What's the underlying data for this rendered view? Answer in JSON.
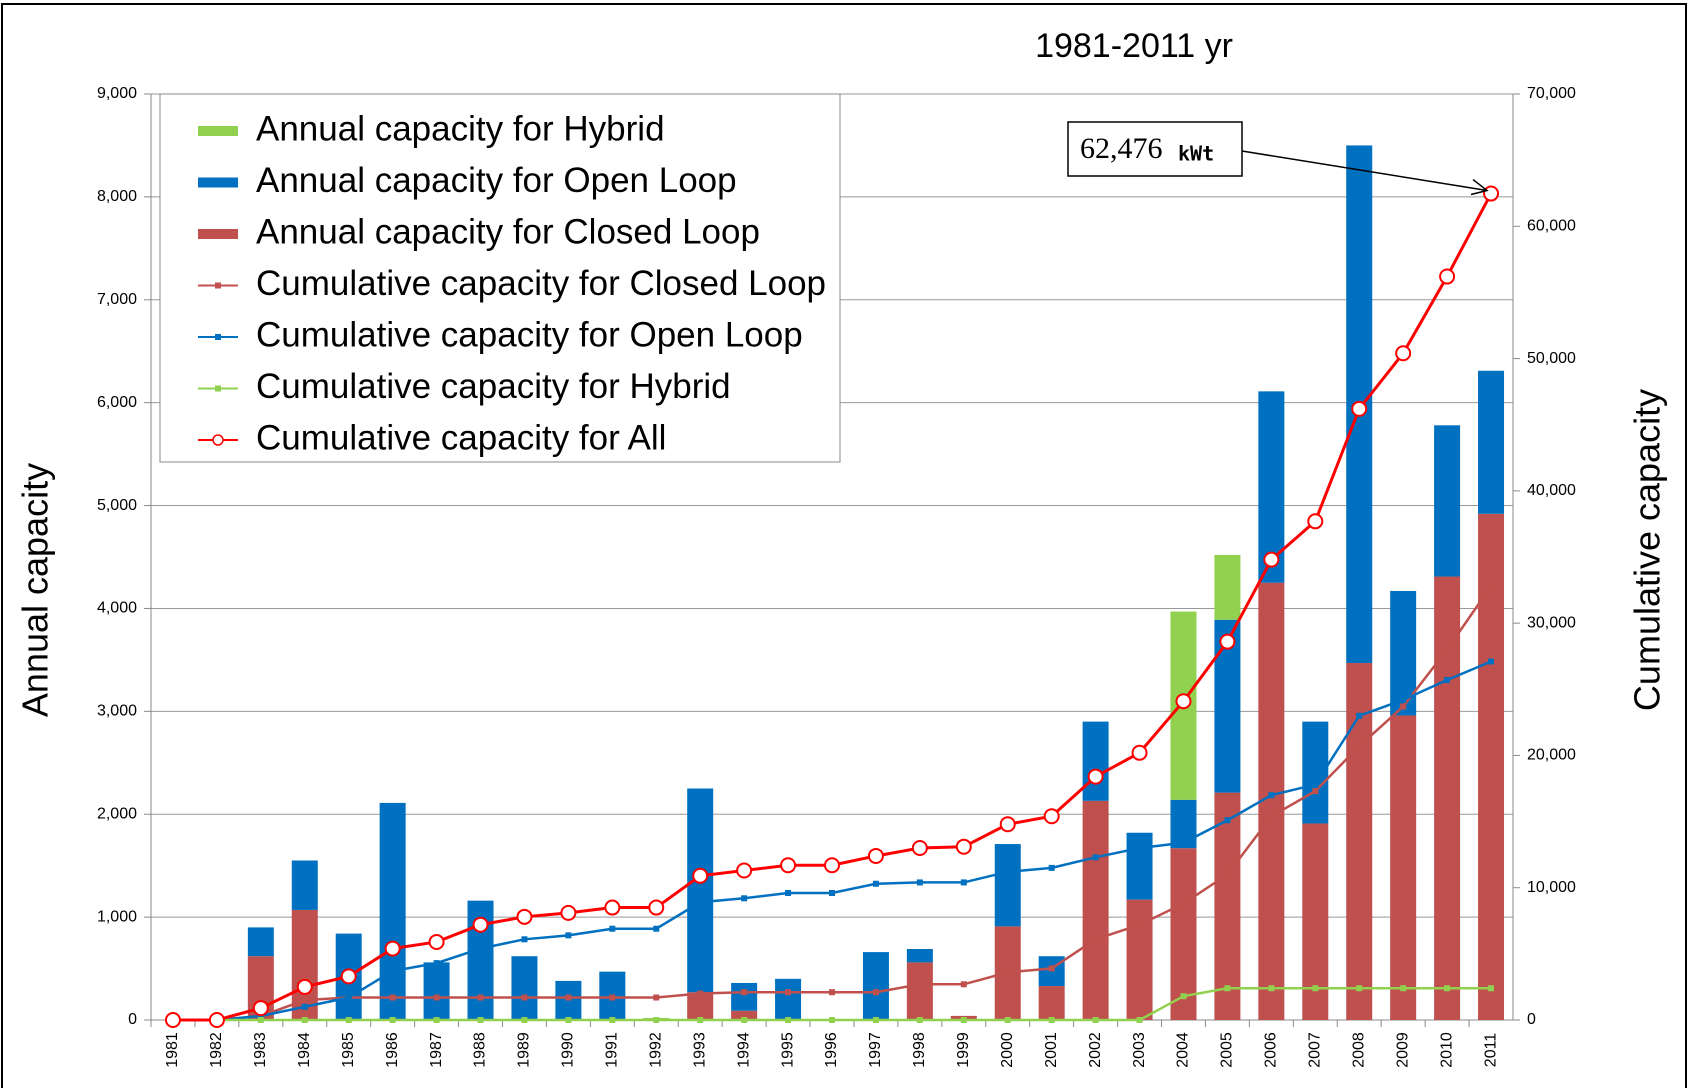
{
  "chart_data": {
    "type": "bar",
    "title": "1981-2011 yr",
    "ylabel": "Annual capacity",
    "y2label": "Cumulative capacity",
    "annotation": {
      "value": "62,476",
      "unit": "kWt"
    },
    "categories": [
      "1981",
      "1982",
      "1983",
      "1984",
      "1985",
      "1986",
      "1987",
      "1988",
      "1989",
      "1990",
      "1991",
      "1992",
      "1993",
      "1994",
      "1995",
      "1996",
      "1997",
      "1998",
      "1999",
      "2000",
      "2001",
      "2002",
      "2003",
      "2004",
      "2005",
      "2006",
      "2007",
      "2008",
      "2009",
      "2010",
      "2011"
    ],
    "ylim": [
      0,
      9000
    ],
    "yticks": [
      0,
      {
        "value": 1000,
        "label": "1,000"
      },
      {
        "value": 2000,
        "label": "2,000"
      },
      {
        "value": 3000,
        "label": "3,000"
      },
      {
        "value": 4000,
        "label": "4,000"
      },
      {
        "value": 5000,
        "label": "5,000"
      },
      {
        "value": 6000,
        "label": "6,000"
      },
      {
        "value": 7000,
        "label": "7,000"
      },
      {
        "value": 8000,
        "label": "8,000"
      },
      {
        "value": 9000,
        "label": "9,000"
      }
    ],
    "y2lim": [
      0,
      70000
    ],
    "y2ticks": [
      0,
      {
        "value": 10000,
        "label": "10,000"
      },
      {
        "value": 20000,
        "label": "20,000"
      },
      {
        "value": 30000,
        "label": "30,000"
      },
      {
        "value": 40000,
        "label": "40,000"
      },
      {
        "value": 50000,
        "label": "50,000"
      },
      {
        "value": 60000,
        "label": "60,000"
      },
      {
        "value": 70000,
        "label": "70,000"
      }
    ],
    "grid": true,
    "legend": "upper left",
    "series": [
      {
        "name": "Annual capacity for Hybrid",
        "type": "bar",
        "color": "#92d050",
        "values": [
          0,
          0,
          0,
          0,
          0,
          0,
          0,
          0,
          0,
          0,
          0,
          20,
          0,
          0,
          0,
          0,
          0,
          0,
          0,
          0,
          0,
          0,
          0,
          1830,
          630,
          0,
          0,
          0,
          0,
          0,
          0
        ]
      },
      {
        "name": "Annual capacity for Open Loop",
        "type": "bar",
        "color": "#0070c0",
        "values": [
          0,
          0,
          280,
          480,
          840,
          2110,
          560,
          1160,
          620,
          380,
          470,
          0,
          1980,
          270,
          400,
          0,
          660,
          130,
          0,
          800,
          290,
          770,
          650,
          470,
          1680,
          1860,
          990,
          5030,
          1210,
          1470,
          1390
        ]
      },
      {
        "name": "Annual capacity for Closed Loop",
        "type": "bar",
        "color": "#c0504d",
        "values": [
          0,
          0,
          620,
          1070,
          0,
          0,
          0,
          0,
          0,
          0,
          0,
          0,
          270,
          90,
          0,
          0,
          0,
          560,
          40,
          910,
          330,
          2130,
          1170,
          1670,
          2210,
          4250,
          1910,
          3470,
          2960,
          4310,
          4920
        ]
      },
      {
        "name": "Cumulative capacity for Closed Loop",
        "type": "line",
        "axis": "y2",
        "marker": "square",
        "color": "#c0504d",
        "values": [
          0,
          0,
          300,
          1500,
          1700,
          1700,
          1700,
          1700,
          1700,
          1700,
          1700,
          1700,
          2000,
          2100,
          2100,
          2100,
          2100,
          2700,
          2700,
          3600,
          3900,
          6100,
          7200,
          8800,
          11000,
          15400,
          17300,
          20700,
          23700,
          28000,
          32800
        ]
      },
      {
        "name": "Cumulative capacity for Open Loop",
        "type": "line",
        "axis": "y2",
        "marker": "square",
        "color": "#0070c0",
        "values": [
          0,
          0,
          300,
          1000,
          1700,
          3700,
          4300,
          5400,
          6100,
          6400,
          6900,
          6900,
          8900,
          9200,
          9600,
          9600,
          10300,
          10400,
          10400,
          11200,
          11500,
          12300,
          13000,
          13400,
          15100,
          17000,
          17800,
          23000,
          24200,
          25700,
          27100
        ]
      },
      {
        "name": "Cumulative capacity for Hybrid",
        "type": "line",
        "axis": "y2",
        "marker": "square",
        "color": "#92d050",
        "values": [
          0,
          0,
          0,
          0,
          0,
          0,
          0,
          0,
          0,
          0,
          0,
          0,
          0,
          0,
          0,
          0,
          0,
          0,
          0,
          0,
          0,
          0,
          0,
          1800,
          2400,
          2400,
          2400,
          2400,
          2400,
          2400,
          2400
        ]
      },
      {
        "name": "Cumulative capacity for All",
        "type": "line",
        "axis": "y2",
        "marker": "circle",
        "color": "#ff0000",
        "values": [
          0,
          0,
          900,
          2500,
          3300,
          5400,
          5900,
          7200,
          7800,
          8100,
          8500,
          8500,
          10900,
          11300,
          11700,
          11700,
          12400,
          13000,
          13100,
          14800,
          15400,
          18400,
          20200,
          24100,
          28600,
          34800,
          37700,
          46200,
          50400,
          56200,
          62476
        ]
      }
    ]
  }
}
